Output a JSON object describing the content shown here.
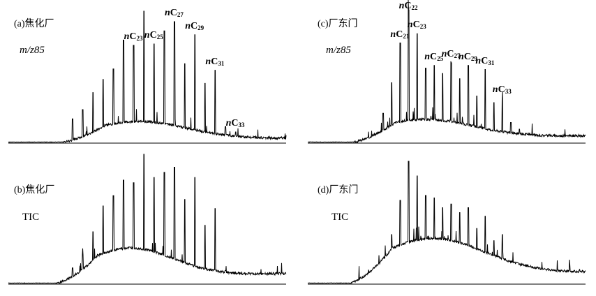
{
  "chart_data": [
    {
      "type": "line",
      "panel": "a",
      "title": "(a)焦化厂",
      "mode_label": "m/z85",
      "peaks": [
        {
          "label": "nC23",
          "carbon": 23
        },
        {
          "label": "nC25",
          "carbon": 25
        },
        {
          "label": "nC27",
          "carbon": 27
        },
        {
          "label": "nC29",
          "carbon": 29
        },
        {
          "label": "nC31",
          "carbon": 31
        },
        {
          "label": "nC33",
          "carbon": 33
        }
      ],
      "alkane_relative_heights": [
        0.18,
        0.25,
        0.38,
        0.48,
        0.56,
        0.78,
        0.74,
        1.0,
        0.75,
        0.85,
        0.92,
        0.6,
        0.82,
        0.45,
        0.55,
        0.12,
        0.08
      ]
    },
    {
      "type": "line",
      "panel": "b",
      "title": "(b)焦化厂",
      "mode_label": "TIC",
      "alkane_relative_heights": [
        0.12,
        0.22,
        0.4,
        0.6,
        0.68,
        0.8,
        0.78,
        1.0,
        0.82,
        0.86,
        0.9,
        0.65,
        0.82,
        0.45,
        0.58,
        0.1,
        0.08
      ]
    },
    {
      "type": "line",
      "panel": "c",
      "title": "(c)厂东门",
      "mode_label": "m/z85",
      "peaks": [
        {
          "label": "nC21",
          "carbon": 21
        },
        {
          "label": "nC22",
          "carbon": 22
        },
        {
          "label": "nC23",
          "carbon": 23
        },
        {
          "label": "nC25",
          "carbon": 25
        },
        {
          "label": "nC27",
          "carbon": 27
        },
        {
          "label": "nC29",
          "carbon": 29
        },
        {
          "label": "nC31",
          "carbon": 31
        },
        {
          "label": "nC33",
          "carbon": 33
        }
      ],
      "alkane_relative_heights": [
        0.22,
        0.45,
        0.75,
        1.0,
        0.82,
        0.56,
        0.58,
        0.52,
        0.6,
        0.48,
        0.58,
        0.35,
        0.55,
        0.3,
        0.33,
        0.15,
        0.1
      ]
    },
    {
      "type": "line",
      "panel": "d",
      "title": "(d)厂东门",
      "mode_label": "TIC",
      "alkane_relative_heights": [
        0.2,
        0.4,
        0.68,
        1.0,
        0.88,
        0.72,
        0.7,
        0.62,
        0.65,
        0.58,
        0.62,
        0.45,
        0.55,
        0.35,
        0.4,
        0.15,
        0.1
      ]
    }
  ]
}
